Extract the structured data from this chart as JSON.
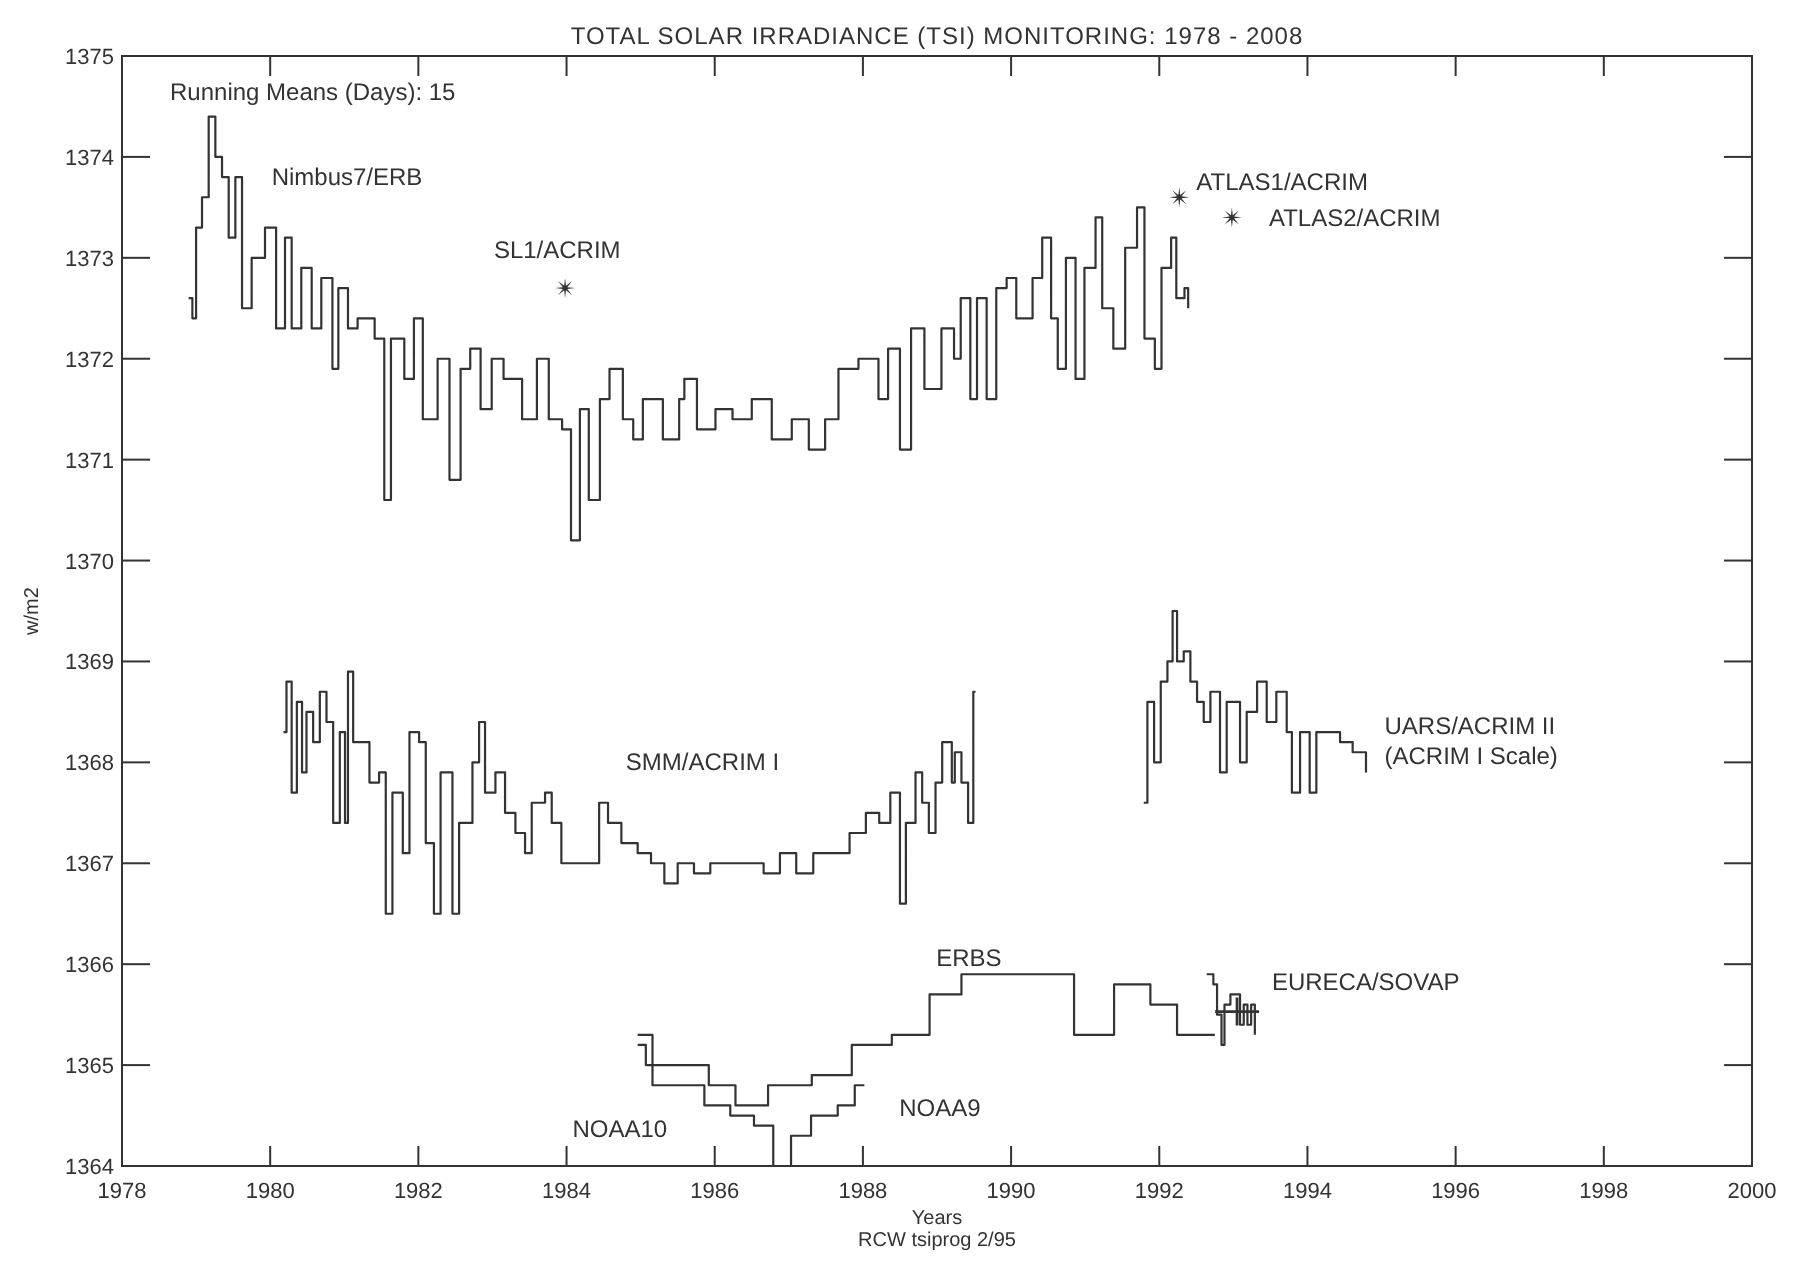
{
  "chart_data": {
    "type": "step",
    "title": "TOTAL SOLAR IRRADIANCE (TSI) MONITORING: 1978 - 2008",
    "xlabel": "Years",
    "ylabel": "w/m2",
    "xlim": [
      1978,
      2000
    ],
    "xticks": [
      1978,
      1980,
      1982,
      1984,
      1986,
      1988,
      1990,
      1992,
      1994,
      1996,
      1998,
      2000
    ],
    "ylim": [
      1364,
      1375
    ],
    "yticks": [
      1364,
      1365,
      1366,
      1367,
      1368,
      1369,
      1370,
      1371,
      1372,
      1373,
      1374,
      1375
    ],
    "grid": false,
    "line_style": "solid",
    "series": [
      {
        "name": "Nimbus7/ERB",
        "color": "#333333",
        "x": [
          1978.9,
          1978.95,
          1979.0,
          1979.08,
          1979.17,
          1979.26,
          1979.35,
          1979.44,
          1979.53,
          1979.62,
          1979.75,
          1979.93,
          1980.08,
          1980.2,
          1980.29,
          1980.42,
          1980.56,
          1980.69,
          1980.84,
          1980.92,
          1981.05,
          1981.18,
          1981.41,
          1981.54,
          1981.63,
          1981.81,
          1981.94,
          1982.06,
          1982.26,
          1982.42,
          1982.57,
          1982.7,
          1982.84,
          1982.99,
          1983.15,
          1983.4,
          1983.6,
          1983.76,
          1983.94,
          1984.06,
          1984.18,
          1984.3,
          1984.45,
          1984.58,
          1984.76,
          1984.9,
          1985.03,
          1985.3,
          1985.52,
          1985.59,
          1985.76,
          1986.01,
          1986.24,
          1986.5,
          1986.77,
          1987.04,
          1987.27,
          1987.49,
          1987.67,
          1987.94,
          1988.21,
          1988.34,
          1988.5,
          1988.65,
          1988.83,
          1989.06,
          1989.23,
          1989.32,
          1989.45,
          1989.54,
          1989.67,
          1989.8,
          1989.94,
          1990.07,
          1990.29,
          1990.42,
          1990.54,
          1990.63,
          1990.74,
          1990.87,
          1990.99,
          1991.14,
          1991.23,
          1991.38,
          1991.54,
          1991.7,
          1991.8,
          1991.94,
          1992.03,
          1992.16,
          1992.23,
          1992.34,
          1992.39
        ],
        "values": [
          1372.6,
          1372.4,
          1373.3,
          1373.6,
          1374.4,
          1374.0,
          1373.8,
          1373.2,
          1373.8,
          1372.5,
          1373.0,
          1373.3,
          1372.3,
          1373.2,
          1372.3,
          1372.9,
          1372.3,
          1372.8,
          1371.9,
          1372.7,
          1372.3,
          1372.4,
          1372.2,
          1370.6,
          1372.2,
          1371.8,
          1372.4,
          1371.4,
          1372.0,
          1370.8,
          1371.9,
          1372.1,
          1371.5,
          1372.0,
          1371.8,
          1371.4,
          1372.0,
          1371.4,
          1371.3,
          1370.2,
          1371.5,
          1370.6,
          1371.6,
          1371.9,
          1371.4,
          1371.2,
          1371.6,
          1371.2,
          1371.6,
          1371.8,
          1371.3,
          1371.5,
          1371.4,
          1371.6,
          1371.2,
          1371.4,
          1371.1,
          1371.4,
          1371.9,
          1372.0,
          1371.6,
          1372.1,
          1371.1,
          1372.3,
          1371.7,
          1372.3,
          1372.0,
          1372.6,
          1371.6,
          1372.6,
          1371.6,
          1372.7,
          1372.8,
          1372.4,
          1372.8,
          1373.2,
          1372.4,
          1371.9,
          1373.0,
          1371.8,
          1372.9,
          1373.4,
          1372.5,
          1372.1,
          1373.1,
          1373.5,
          1372.2,
          1371.9,
          1372.9,
          1373.2,
          1372.6,
          1372.7,
          1372.5
        ]
      },
      {
        "name": "SMM/ACRIM I",
        "color": "#333333",
        "x": [
          1980.18,
          1980.22,
          1980.29,
          1980.36,
          1980.43,
          1980.49,
          1980.58,
          1980.67,
          1980.76,
          1980.85,
          1980.94,
          1981.01,
          1981.05,
          1981.12,
          1981.25,
          1981.34,
          1981.47,
          1981.56,
          1981.65,
          1981.79,
          1981.88,
          1982.01,
          1982.1,
          1982.21,
          1982.3,
          1982.46,
          1982.55,
          1982.73,
          1982.82,
          1982.9,
          1983.04,
          1983.17,
          1983.31,
          1983.44,
          1983.53,
          1983.71,
          1983.8,
          1983.93,
          1984.38,
          1984.44,
          1984.56,
          1984.74,
          1984.96,
          1985.14,
          1985.32,
          1985.5,
          1985.72,
          1985.94,
          1986.21,
          1986.43,
          1986.66,
          1986.88,
          1987.1,
          1987.33,
          1987.55,
          1987.82,
          1988.04,
          1988.22,
          1988.37,
          1988.5,
          1988.58,
          1988.71,
          1988.8,
          1988.89,
          1988.98,
          1989.07,
          1989.2,
          1989.24,
          1989.33,
          1989.42,
          1989.49,
          1989.52
        ],
        "values": [
          1368.3,
          1368.8,
          1367.7,
          1368.6,
          1367.9,
          1368.5,
          1368.2,
          1368.7,
          1368.4,
          1367.4,
          1368.3,
          1367.4,
          1368.9,
          1368.2,
          1368.2,
          1367.8,
          1367.9,
          1366.5,
          1367.7,
          1367.1,
          1368.3,
          1368.2,
          1367.2,
          1366.5,
          1367.9,
          1366.5,
          1367.4,
          1368.0,
          1368.4,
          1367.7,
          1367.9,
          1367.5,
          1367.3,
          1367.1,
          1367.6,
          1367.7,
          1367.4,
          1367.0,
          1367.0,
          1367.6,
          1367.4,
          1367.2,
          1367.1,
          1367.0,
          1366.8,
          1367.0,
          1366.9,
          1367.0,
          1367.0,
          1367.0,
          1366.9,
          1367.1,
          1366.9,
          1367.1,
          1367.1,
          1367.3,
          1367.5,
          1367.4,
          1367.7,
          1366.6,
          1367.4,
          1367.9,
          1367.6,
          1367.3,
          1367.8,
          1368.2,
          1367.8,
          1368.1,
          1367.8,
          1367.4,
          1368.7,
          1368.7
        ]
      },
      {
        "name": "UARS/ACRIM II\n(ACRIM I Scale)",
        "color": "#333333",
        "x": [
          1991.79,
          1991.84,
          1991.93,
          1992.02,
          1992.11,
          1992.18,
          1992.24,
          1992.33,
          1992.42,
          1992.51,
          1992.6,
          1992.69,
          1992.82,
          1992.91,
          1993.09,
          1993.18,
          1993.32,
          1993.45,
          1993.58,
          1993.72,
          1993.79,
          1993.9,
          1994.03,
          1994.12,
          1994.26,
          1994.44,
          1994.61,
          1994.79
        ],
        "values": [
          1367.6,
          1368.6,
          1368.0,
          1368.8,
          1369.0,
          1369.5,
          1369.0,
          1369.1,
          1368.8,
          1368.6,
          1368.4,
          1368.7,
          1367.9,
          1368.6,
          1368.0,
          1368.5,
          1368.8,
          1368.4,
          1368.7,
          1368.3,
          1367.7,
          1368.3,
          1367.7,
          1368.3,
          1368.3,
          1368.2,
          1368.1,
          1367.9
        ]
      },
      {
        "name": "ERBS",
        "color": "#333333",
        "x": [
          1984.96,
          1985.07,
          1985.38,
          1985.92,
          1986.28,
          1986.72,
          1987.31,
          1987.85,
          1988.39,
          1988.9,
          1989.33,
          1990.36,
          1990.85,
          1991.39,
          1991.88,
          1992.24,
          1992.75
        ],
        "values": [
          1365.2,
          1365.0,
          1365.0,
          1364.8,
          1364.6,
          1364.8,
          1364.9,
          1365.2,
          1365.3,
          1365.7,
          1365.9,
          1365.9,
          1365.3,
          1365.8,
          1365.6,
          1365.3,
          1365.3
        ]
      },
      {
        "name": "NOAA10",
        "color": "#333333",
        "x": [
          1984.96,
          1985.16,
          1985.86,
          1986.21,
          1986.53,
          1986.79
        ],
        "values": [
          1365.3,
          1364.8,
          1364.6,
          1364.5,
          1364.4,
          1364.0
        ]
      },
      {
        "name": "NOAA9",
        "color": "#333333",
        "x": [
          1987.03,
          1987.03,
          1987.3,
          1987.66,
          1987.89,
          1988.02
        ],
        "values": [
          1364.0,
          1364.3,
          1364.5,
          1364.6,
          1364.8,
          1364.8
        ]
      },
      {
        "name": "EURECA/SOVAP",
        "color": "#333333",
        "x": [
          1992.64,
          1992.73,
          1992.78,
          1992.84,
          1992.88,
          1992.96,
          1993.04,
          1993.09,
          1993.14,
          1993.19,
          1993.24,
          1993.29
        ],
        "values": [
          1365.9,
          1365.8,
          1365.5,
          1365.2,
          1365.6,
          1365.7,
          1365.7,
          1365.4,
          1365.6,
          1365.4,
          1365.6,
          1365.3
        ]
      },
      {
        "name": "SL1/ACRIM",
        "type": "scatter",
        "marker": "star",
        "color": "#333333",
        "x": [
          1983.98
        ],
        "values": [
          1372.7
        ]
      },
      {
        "name": "ATLAS1/ACRIM",
        "type": "scatter",
        "marker": "star",
        "color": "#333333",
        "x": [
          1992.27
        ],
        "values": [
          1373.6
        ]
      },
      {
        "name": "ATLAS2/ACRIM",
        "type": "scatter",
        "marker": "star",
        "color": "#333333",
        "x": [
          1992.98
        ],
        "values": [
          1373.4
        ]
      },
      {
        "type": "scatter",
        "marker": "cross",
        "color": "#333333",
        "x": [
          1993.05
        ],
        "values": [
          1365.53
        ]
      }
    ],
    "annotations": [
      "Running Means (Days):  15",
      "RCW tsiprog 2/95"
    ]
  }
}
